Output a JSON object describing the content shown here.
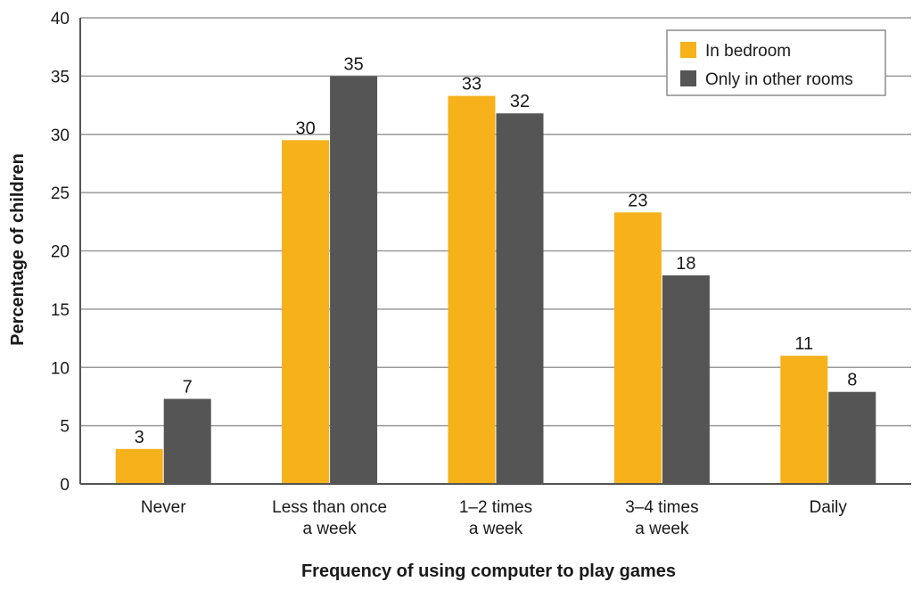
{
  "chart_data": {
    "type": "bar",
    "title": "",
    "xlabel": "Frequency of using computer to play games",
    "ylabel": "Percentage of children",
    "ylim": [
      0,
      40
    ],
    "yticks": [
      0,
      5,
      10,
      15,
      20,
      25,
      30,
      35,
      40
    ],
    "grid": true,
    "legend_position": "top-right",
    "categories": [
      [
        "Never"
      ],
      [
        "Less than once",
        "a week"
      ],
      [
        "1–2 times",
        "a week"
      ],
      [
        "3–4 times",
        "a week"
      ],
      [
        "Daily"
      ]
    ],
    "series": [
      {
        "name": "In bedroom",
        "color": "#f6b11b",
        "values": [
          3,
          29.5,
          33.3,
          23.3,
          11
        ],
        "labels": [
          "3",
          "30",
          "33",
          "23",
          "11"
        ]
      },
      {
        "name": "Only in other rooms",
        "color": "#555555",
        "values": [
          7.3,
          35,
          31.8,
          17.9,
          7.9
        ],
        "labels": [
          "7",
          "35",
          "32",
          "18",
          "8"
        ]
      }
    ]
  }
}
